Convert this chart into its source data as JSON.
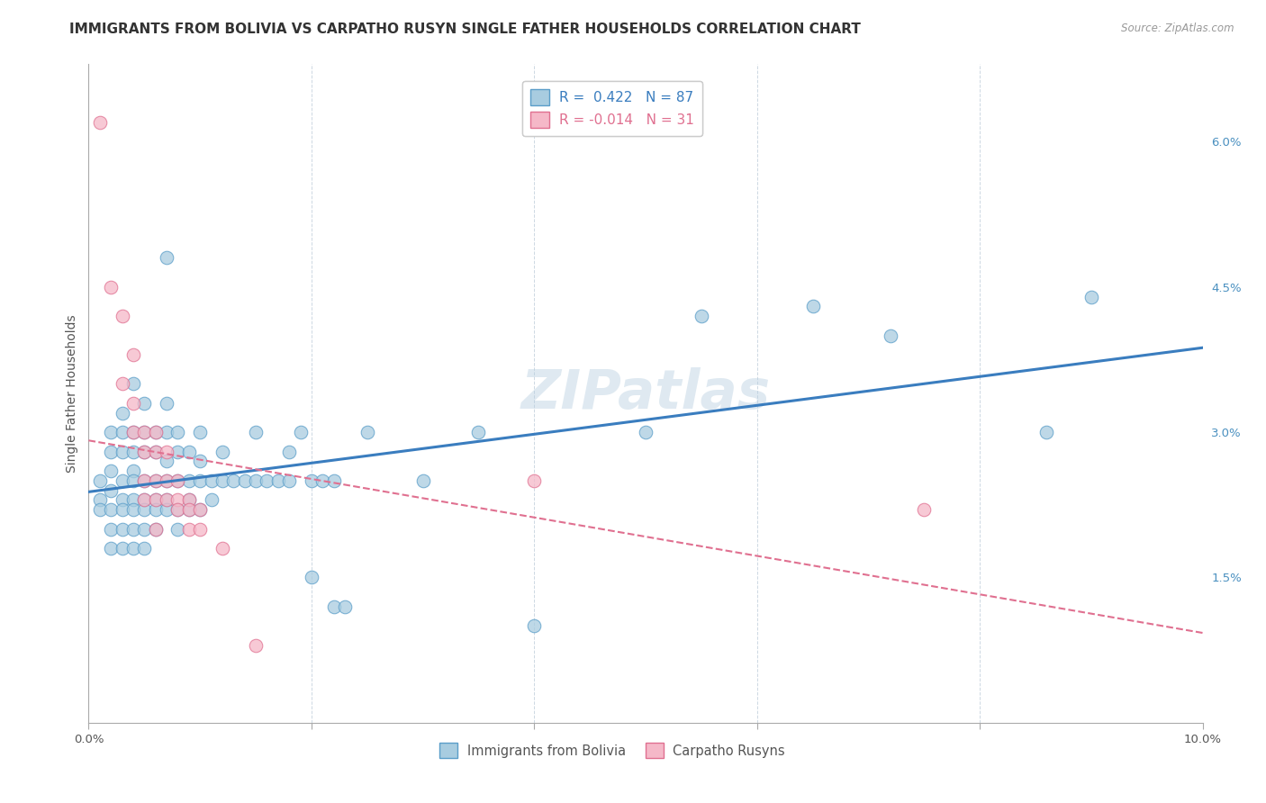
{
  "title": "IMMIGRANTS FROM BOLIVIA VS CARPATHO RUSYN SINGLE FATHER HOUSEHOLDS CORRELATION CHART",
  "source": "Source: ZipAtlas.com",
  "ylabel": "Single Father Households",
  "x_min": 0.0,
  "x_max": 0.1,
  "y_min": 0.0,
  "y_max": 0.068,
  "bolivia_color": "#a8cce0",
  "bolivia_edge": "#5b9ec9",
  "carpatho_color": "#f5b8c8",
  "carpatho_edge": "#e07090",
  "trendline_blue": "#3a7dbf",
  "trendline_pink": "#e07090",
  "grid_color": "#c8d4e0",
  "bg_color": "#ffffff",
  "text_color": "#333333",
  "tick_color_right": "#4a90c0",
  "watermark": "ZIPatlas",
  "bolivia_points": [
    [
      0.001,
      0.025
    ],
    [
      0.001,
      0.023
    ],
    [
      0.001,
      0.022
    ],
    [
      0.002,
      0.03
    ],
    [
      0.002,
      0.028
    ],
    [
      0.002,
      0.026
    ],
    [
      0.002,
      0.024
    ],
    [
      0.002,
      0.022
    ],
    [
      0.002,
      0.02
    ],
    [
      0.002,
      0.018
    ],
    [
      0.003,
      0.032
    ],
    [
      0.003,
      0.03
    ],
    [
      0.003,
      0.028
    ],
    [
      0.003,
      0.025
    ],
    [
      0.003,
      0.023
    ],
    [
      0.003,
      0.022
    ],
    [
      0.003,
      0.02
    ],
    [
      0.003,
      0.018
    ],
    [
      0.004,
      0.035
    ],
    [
      0.004,
      0.03
    ],
    [
      0.004,
      0.028
    ],
    [
      0.004,
      0.026
    ],
    [
      0.004,
      0.025
    ],
    [
      0.004,
      0.023
    ],
    [
      0.004,
      0.022
    ],
    [
      0.004,
      0.02
    ],
    [
      0.004,
      0.018
    ],
    [
      0.005,
      0.033
    ],
    [
      0.005,
      0.03
    ],
    [
      0.005,
      0.028
    ],
    [
      0.005,
      0.025
    ],
    [
      0.005,
      0.023
    ],
    [
      0.005,
      0.022
    ],
    [
      0.005,
      0.02
    ],
    [
      0.005,
      0.018
    ],
    [
      0.006,
      0.03
    ],
    [
      0.006,
      0.028
    ],
    [
      0.006,
      0.025
    ],
    [
      0.006,
      0.023
    ],
    [
      0.006,
      0.022
    ],
    [
      0.006,
      0.02
    ],
    [
      0.007,
      0.048
    ],
    [
      0.007,
      0.033
    ],
    [
      0.007,
      0.03
    ],
    [
      0.007,
      0.027
    ],
    [
      0.007,
      0.025
    ],
    [
      0.007,
      0.023
    ],
    [
      0.007,
      0.022
    ],
    [
      0.008,
      0.03
    ],
    [
      0.008,
      0.028
    ],
    [
      0.008,
      0.025
    ],
    [
      0.008,
      0.022
    ],
    [
      0.008,
      0.02
    ],
    [
      0.009,
      0.028
    ],
    [
      0.009,
      0.025
    ],
    [
      0.009,
      0.023
    ],
    [
      0.009,
      0.022
    ],
    [
      0.01,
      0.03
    ],
    [
      0.01,
      0.027
    ],
    [
      0.01,
      0.025
    ],
    [
      0.01,
      0.022
    ],
    [
      0.011,
      0.025
    ],
    [
      0.011,
      0.023
    ],
    [
      0.012,
      0.028
    ],
    [
      0.012,
      0.025
    ],
    [
      0.013,
      0.025
    ],
    [
      0.014,
      0.025
    ],
    [
      0.015,
      0.03
    ],
    [
      0.015,
      0.025
    ],
    [
      0.016,
      0.025
    ],
    [
      0.017,
      0.025
    ],
    [
      0.018,
      0.028
    ],
    [
      0.018,
      0.025
    ],
    [
      0.019,
      0.03
    ],
    [
      0.02,
      0.025
    ],
    [
      0.02,
      0.015
    ],
    [
      0.021,
      0.025
    ],
    [
      0.022,
      0.025
    ],
    [
      0.022,
      0.012
    ],
    [
      0.023,
      0.012
    ],
    [
      0.025,
      0.03
    ],
    [
      0.03,
      0.025
    ],
    [
      0.035,
      0.03
    ],
    [
      0.04,
      0.01
    ],
    [
      0.05,
      0.03
    ],
    [
      0.055,
      0.042
    ],
    [
      0.065,
      0.043
    ],
    [
      0.072,
      0.04
    ],
    [
      0.086,
      0.03
    ],
    [
      0.09,
      0.044
    ]
  ],
  "carpatho_points": [
    [
      0.001,
      0.062
    ],
    [
      0.002,
      0.045
    ],
    [
      0.003,
      0.042
    ],
    [
      0.003,
      0.035
    ],
    [
      0.004,
      0.038
    ],
    [
      0.004,
      0.033
    ],
    [
      0.004,
      0.03
    ],
    [
      0.005,
      0.03
    ],
    [
      0.005,
      0.028
    ],
    [
      0.005,
      0.025
    ],
    [
      0.005,
      0.023
    ],
    [
      0.006,
      0.03
    ],
    [
      0.006,
      0.028
    ],
    [
      0.006,
      0.025
    ],
    [
      0.006,
      0.023
    ],
    [
      0.006,
      0.02
    ],
    [
      0.007,
      0.028
    ],
    [
      0.007,
      0.025
    ],
    [
      0.007,
      0.023
    ],
    [
      0.008,
      0.025
    ],
    [
      0.008,
      0.023
    ],
    [
      0.008,
      0.022
    ],
    [
      0.009,
      0.023
    ],
    [
      0.009,
      0.022
    ],
    [
      0.009,
      0.02
    ],
    [
      0.01,
      0.022
    ],
    [
      0.01,
      0.02
    ],
    [
      0.012,
      0.018
    ],
    [
      0.015,
      0.008
    ],
    [
      0.04,
      0.025
    ],
    [
      0.075,
      0.022
    ]
  ]
}
